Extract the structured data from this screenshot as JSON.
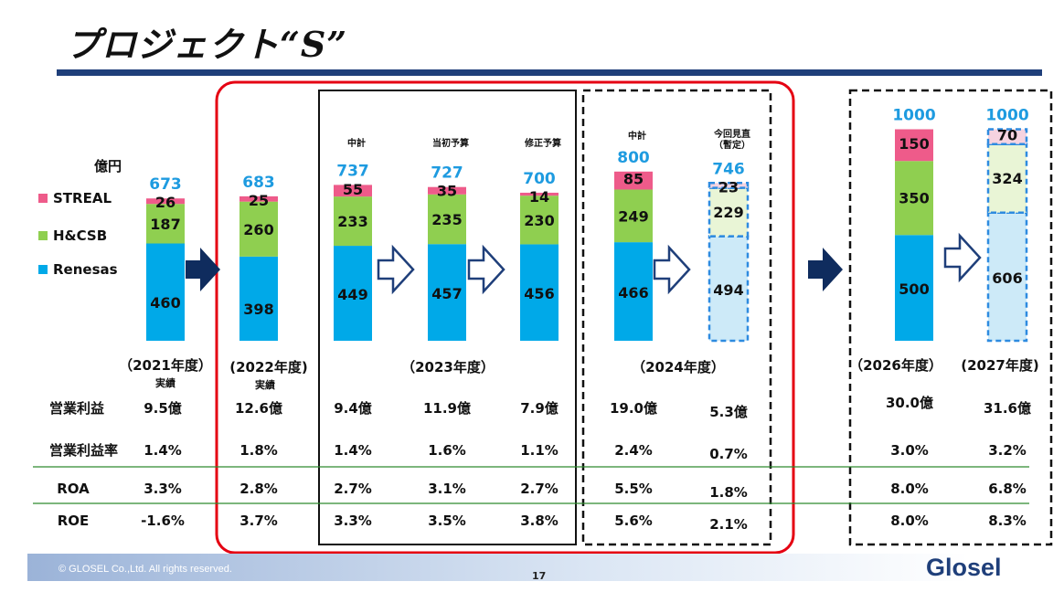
{
  "title": "プロジェクト“S”",
  "footer": {
    "copyright": "© GLOSEL Co.,Ltd. All rights reserved.",
    "page": "17",
    "logo": "Glosel"
  },
  "unit_label": "億円",
  "colors": {
    "STREAL": "#ee5b8a",
    "H&CSB": "#8fcf50",
    "Renesas": "#00a9e8",
    "total": "#1e9be0",
    "arrow_solid": "#0f2c5e",
    "red_box": "#e50012"
  },
  "chart_data": {
    "type": "bar",
    "stacked": true,
    "unit": "億円",
    "legend": [
      "STREAL",
      "H&CSB",
      "Renesas"
    ],
    "bars": [
      {
        "year": "（2021年度）",
        "sub": "実績",
        "total": 673,
        "Renesas": 460,
        "H&CSB": 187,
        "STREAL": 26
      },
      {
        "year": "(2022年度)",
        "sub": "実績",
        "total": 683,
        "Renesas": 398,
        "H&CSB": 260,
        "STREAL": 25
      },
      {
        "header": "中計",
        "total": 737,
        "Renesas": 449,
        "H&CSB": 233,
        "STREAL": 55
      },
      {
        "header": "当初予算",
        "total": 727,
        "Renesas": 457,
        "H&CSB": 235,
        "STREAL": 35
      },
      {
        "header": "修正予算",
        "total": 700,
        "Renesas": 456,
        "H&CSB": 230,
        "STREAL": 14
      },
      {
        "header": "中計",
        "total": 800,
        "Renesas": 466,
        "H&CSB": 249,
        "STREAL": 85
      },
      {
        "header": "今回見直\n（暫定）",
        "total": 746,
        "Renesas": 494,
        "H&CSB": 229,
        "STREAL": 23,
        "style": "dashed"
      },
      {
        "year": "（2026年度）",
        "total": 1000,
        "Renesas": 500,
        "H&CSB": 350,
        "STREAL": 150
      },
      {
        "year": "(2027年度)",
        "total": 1000,
        "Renesas": 606,
        "H&CSB": 324,
        "STREAL": 70,
        "style": "dashed"
      }
    ],
    "group_labels": [
      "（2023年度）",
      "（2024年度）"
    ],
    "metrics": [
      {
        "label": "営業利益",
        "values": [
          "9.5億",
          "12.6億",
          "9.4億",
          "11.9億",
          "7.9億",
          "19.0億",
          "5.3億",
          "30.0億",
          "31.6億"
        ]
      },
      {
        "label": "営業利益率",
        "values": [
          "1.4%",
          "1.8%",
          "1.4%",
          "1.6%",
          "1.1%",
          "2.4%",
          "0.7%",
          "3.0%",
          "3.2%"
        ]
      },
      {
        "label": "ROA",
        "values": [
          "3.3%",
          "2.8%",
          "2.7%",
          "3.1%",
          "2.7%",
          "5.5%",
          "1.8%",
          "8.0%",
          "6.8%"
        ]
      },
      {
        "label": "ROE",
        "values": [
          "-1.6%",
          "3.7%",
          "3.3%",
          "3.5%",
          "3.8%",
          "5.6%",
          "2.1%",
          "8.0%",
          "8.3%"
        ]
      }
    ]
  }
}
